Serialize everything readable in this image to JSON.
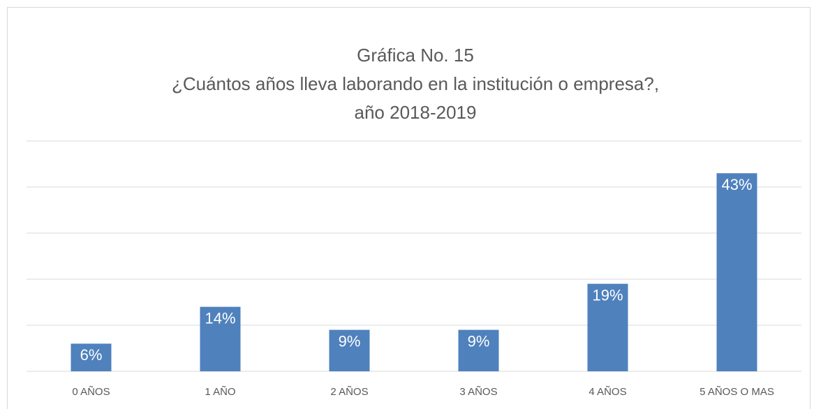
{
  "chart_data": {
    "type": "bar",
    "title": [
      "Gráfica No. 15",
      "¿Cuántos años lleva laborando en la institución o empresa?,",
      "año 2018-2019"
    ],
    "categories": [
      "0 AÑOS",
      "1 AÑO",
      "2 AÑOS",
      "3 AÑOS",
      "4 AÑOS",
      "5 AÑOS O MAS"
    ],
    "values": [
      6,
      14,
      9,
      9,
      19,
      43
    ],
    "value_labels": [
      "6%",
      "14%",
      "9%",
      "9%",
      "19%",
      "43%"
    ],
    "color": "#4f81bd",
    "ylim": [
      0,
      50
    ],
    "yticks": [
      0,
      10,
      20,
      30,
      40,
      50
    ],
    "grid": true
  }
}
